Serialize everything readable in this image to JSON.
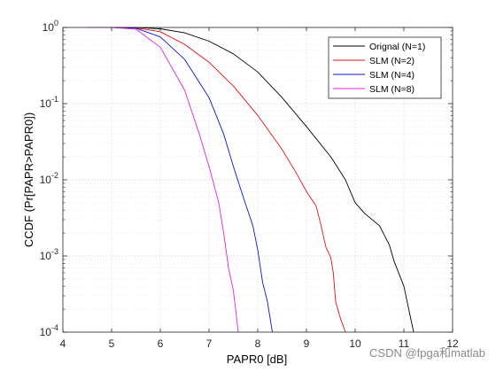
{
  "chart_data": {
    "type": "line",
    "xlabel": "PAPR0 [dB]",
    "ylabel": "CCDF (Pr[PAPR>PAPR0])",
    "xlim": [
      4,
      12
    ],
    "ylim": [
      0.0001,
      1
    ],
    "yscale": "log",
    "grid": true,
    "legend_position": "top-right",
    "x_ticks": [
      "4",
      "5",
      "6",
      "7",
      "8",
      "9",
      "10",
      "11",
      "12"
    ],
    "y_ticks": [
      {
        "base": "10",
        "exp": "0"
      },
      {
        "base": "10",
        "exp": "-1"
      },
      {
        "base": "10",
        "exp": "-2"
      },
      {
        "base": "10",
        "exp": "-3"
      },
      {
        "base": "10",
        "exp": "-4"
      }
    ],
    "series": [
      {
        "name": "Orignal (N=1)",
        "color": "#000000",
        "points": [
          [
            4.5,
            1
          ],
          [
            5.0,
            1
          ],
          [
            5.5,
            0.998
          ],
          [
            6.0,
            0.96
          ],
          [
            6.5,
            0.85
          ],
          [
            7.0,
            0.66
          ],
          [
            7.5,
            0.45
          ],
          [
            8.0,
            0.26
          ],
          [
            8.5,
            0.12
          ],
          [
            9.0,
            0.05
          ],
          [
            9.5,
            0.02
          ],
          [
            9.8,
            0.01
          ],
          [
            10.0,
            0.005
          ],
          [
            10.2,
            0.0036
          ],
          [
            10.5,
            0.0025
          ],
          [
            10.7,
            0.0014
          ],
          [
            10.8,
            0.00085
          ],
          [
            11.0,
            0.0004
          ],
          [
            11.1,
            0.0002
          ],
          [
            11.2,
            0.0001
          ]
        ]
      },
      {
        "name": "SLM (N=2)",
        "color": "#e01010",
        "points": [
          [
            4.5,
            1
          ],
          [
            5.0,
            1
          ],
          [
            5.5,
            0.99
          ],
          [
            6.0,
            0.88
          ],
          [
            6.5,
            0.6
          ],
          [
            7.0,
            0.35
          ],
          [
            7.5,
            0.17
          ],
          [
            8.0,
            0.07
          ],
          [
            8.5,
            0.025
          ],
          [
            8.8,
            0.012
          ],
          [
            9.0,
            0.007
          ],
          [
            9.2,
            0.0045
          ],
          [
            9.3,
            0.0025
          ],
          [
            9.4,
            0.0013
          ],
          [
            9.5,
            0.00095
          ],
          [
            9.55,
            0.0006
          ],
          [
            9.6,
            0.00025
          ],
          [
            9.7,
            0.00015
          ],
          [
            9.8,
            0.0001
          ]
        ]
      },
      {
        "name": "SLM (N=4)",
        "color": "#1010d0",
        "points": [
          [
            4.5,
            1
          ],
          [
            5.0,
            1
          ],
          [
            5.5,
            0.98
          ],
          [
            6.0,
            0.75
          ],
          [
            6.5,
            0.38
          ],
          [
            7.0,
            0.12
          ],
          [
            7.3,
            0.04
          ],
          [
            7.5,
            0.015
          ],
          [
            7.7,
            0.006
          ],
          [
            7.9,
            0.0025
          ],
          [
            8.0,
            0.0012
          ],
          [
            8.1,
            0.00045
          ],
          [
            8.2,
            0.00025
          ],
          [
            8.3,
            0.0001
          ]
        ]
      },
      {
        "name": "SLM (N=8)",
        "color": "#e020e0",
        "points": [
          [
            4.5,
            1
          ],
          [
            5.0,
            1
          ],
          [
            5.5,
            0.95
          ],
          [
            6.0,
            0.55
          ],
          [
            6.5,
            0.15
          ],
          [
            6.8,
            0.04
          ],
          [
            7.0,
            0.015
          ],
          [
            7.2,
            0.005
          ],
          [
            7.3,
            0.002
          ],
          [
            7.4,
            0.0007
          ],
          [
            7.5,
            0.00035
          ],
          [
            7.6,
            0.0001
          ]
        ]
      }
    ]
  },
  "watermark": "CSDN @fpga和matlab"
}
